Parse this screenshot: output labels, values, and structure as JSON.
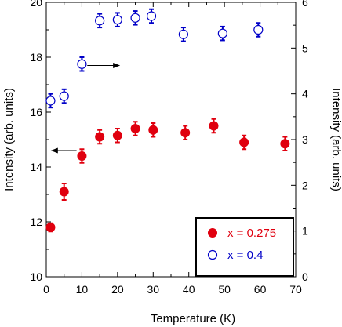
{
  "chart_data": {
    "type": "scatter",
    "xlabel": "Temperature (K)",
    "ylabel_left": "Intensity (arb. units)",
    "ylabel_right": "Intensity (arb. units)",
    "xlim": [
      0,
      70
    ],
    "ylim_left": [
      10,
      20
    ],
    "ylim_right": [
      0,
      6
    ],
    "x_ticks": [
      0,
      10,
      20,
      30,
      40,
      50,
      60,
      70
    ],
    "y_left_ticks": [
      10,
      12,
      14,
      16,
      18,
      20
    ],
    "y_right_ticks": [
      0,
      1,
      2,
      3,
      4,
      5,
      6
    ],
    "grid": false,
    "legend_placement": "bottom-right",
    "series": [
      {
        "name": "x = 0.275",
        "axis": "left",
        "marker": "filled-circle",
        "color": "#e0000f",
        "points": [
          {
            "x": 1.2,
            "y": 11.8,
            "err": 0.15
          },
          {
            "x": 5.0,
            "y": 13.1,
            "err": 0.3
          },
          {
            "x": 10.0,
            "y": 14.4,
            "err": 0.25
          },
          {
            "x": 15.0,
            "y": 15.1,
            "err": 0.25
          },
          {
            "x": 20.0,
            "y": 15.15,
            "err": 0.25
          },
          {
            "x": 25.0,
            "y": 15.4,
            "err": 0.25
          },
          {
            "x": 30.0,
            "y": 15.35,
            "err": 0.25
          },
          {
            "x": 39.0,
            "y": 15.25,
            "err": 0.25
          },
          {
            "x": 47.0,
            "y": 15.5,
            "err": 0.25
          },
          {
            "x": 55.5,
            "y": 14.9,
            "err": 0.25
          },
          {
            "x": 67.0,
            "y": 14.85,
            "err": 0.25
          }
        ]
      },
      {
        "name": "x = 0.4",
        "axis": "right",
        "marker": "open-circle",
        "color": "#0000c8",
        "points": [
          {
            "x": 1.2,
            "y": 3.85,
            "err": 0.15
          },
          {
            "x": 5.0,
            "y": 3.95,
            "err": 0.15
          },
          {
            "x": 10.0,
            "y": 4.65,
            "err": 0.15
          },
          {
            "x": 15.0,
            "y": 5.6,
            "err": 0.15
          },
          {
            "x": 20.0,
            "y": 5.62,
            "err": 0.15
          },
          {
            "x": 25.0,
            "y": 5.66,
            "err": 0.15
          },
          {
            "x": 29.5,
            "y": 5.7,
            "err": 0.15
          },
          {
            "x": 38.5,
            "y": 5.3,
            "err": 0.15
          },
          {
            "x": 49.5,
            "y": 5.32,
            "err": 0.15
          },
          {
            "x": 59.5,
            "y": 5.4,
            "err": 0.15
          }
        ]
      }
    ],
    "arrows": [
      {
        "direction": "left",
        "from_x": 8.5,
        "to_x": 1.5,
        "y_axis": "left",
        "y": 14.6
      },
      {
        "direction": "right",
        "from_x": 11.5,
        "to_x": 20.5,
        "y_axis": "left",
        "y": 17.7
      }
    ]
  }
}
